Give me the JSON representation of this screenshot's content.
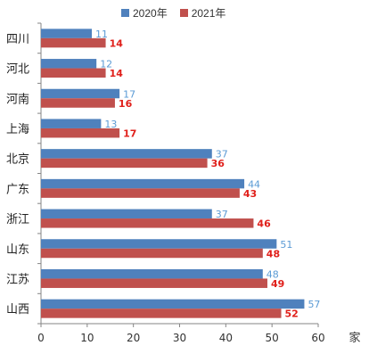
{
  "chart_data": {
    "type": "bar",
    "orientation": "horizontal",
    "categories": [
      "四川",
      "河北",
      "河南",
      "上海",
      "北京",
      "广东",
      "浙江",
      "山东",
      "江苏",
      "山西"
    ],
    "series": [
      {
        "name": "2020年",
        "values": [
          11,
          12,
          17,
          13,
          37,
          44,
          37,
          51,
          48,
          57
        ],
        "color": "#4f81bd",
        "label_color": "#5b9bd5"
      },
      {
        "name": "2021年",
        "values": [
          14,
          14,
          16,
          17,
          36,
          43,
          46,
          48,
          49,
          52
        ],
        "color": "#c0504d",
        "label_color": "#e0201b"
      }
    ],
    "x_ticks": [
      "0",
      "10",
      "20",
      "30",
      "40",
      "50",
      "60"
    ],
    "xlim": [
      0,
      60
    ],
    "unit_label": "家",
    "legend_position": "top",
    "grid": false
  }
}
